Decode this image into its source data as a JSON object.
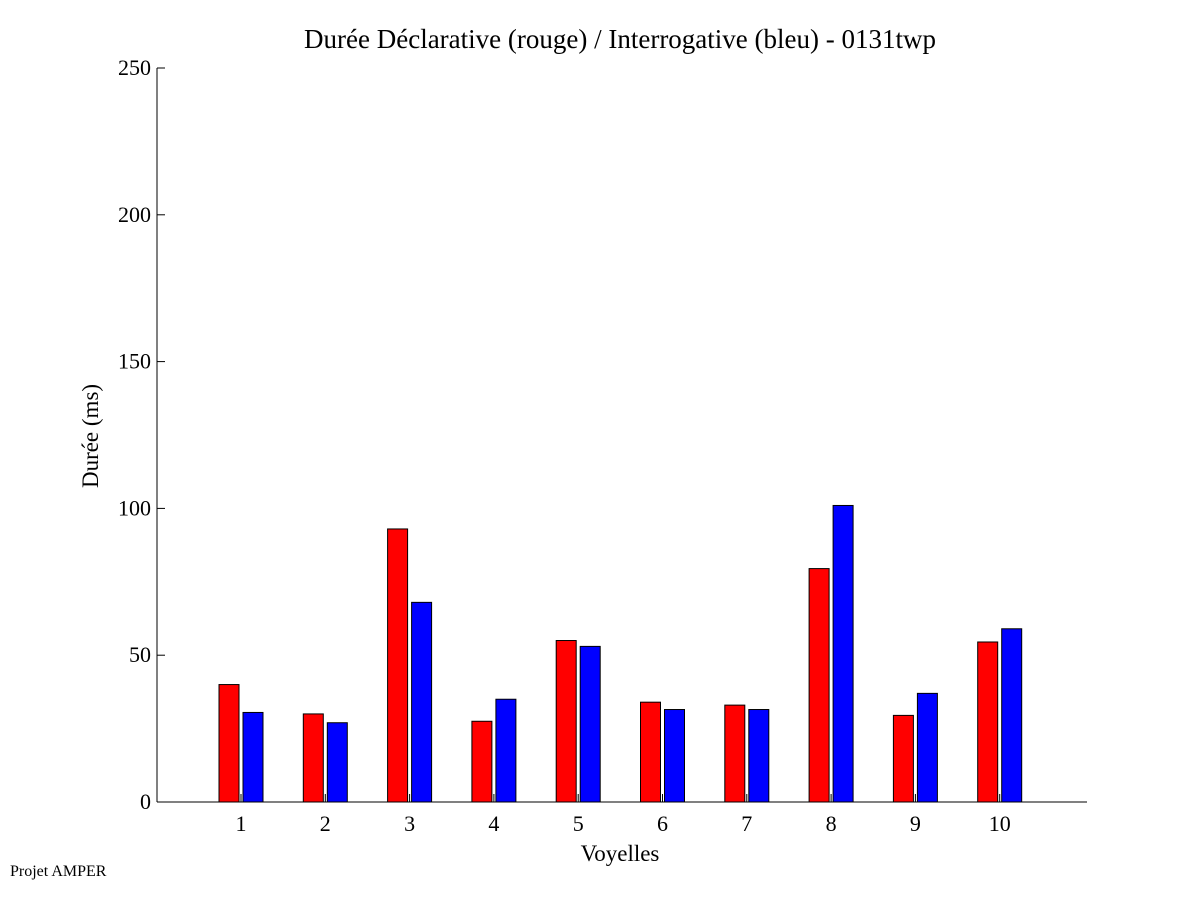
{
  "chart_data": {
    "type": "bar",
    "title": "Durée Déclarative (rouge) / Interrogative (bleu) - 0131twp",
    "xlabel": "Voyelles",
    "ylabel": "Durée (ms)",
    "ylim": [
      0,
      250
    ],
    "yticks": [
      0,
      50,
      100,
      150,
      200,
      250
    ],
    "categories": [
      "1",
      "2",
      "3",
      "4",
      "5",
      "6",
      "7",
      "8",
      "9",
      "10"
    ],
    "series": [
      {
        "color": "#ff0000",
        "values": [
          40,
          30,
          93,
          27.5,
          55,
          34,
          33,
          79.5,
          29.5,
          54.5
        ]
      },
      {
        "color": "#0000ff",
        "values": [
          30.5,
          27,
          68,
          35,
          53,
          31.5,
          31.5,
          101,
          37,
          59
        ]
      }
    ],
    "grid": false
  },
  "footer": {
    "text": "Projet AMPER"
  }
}
